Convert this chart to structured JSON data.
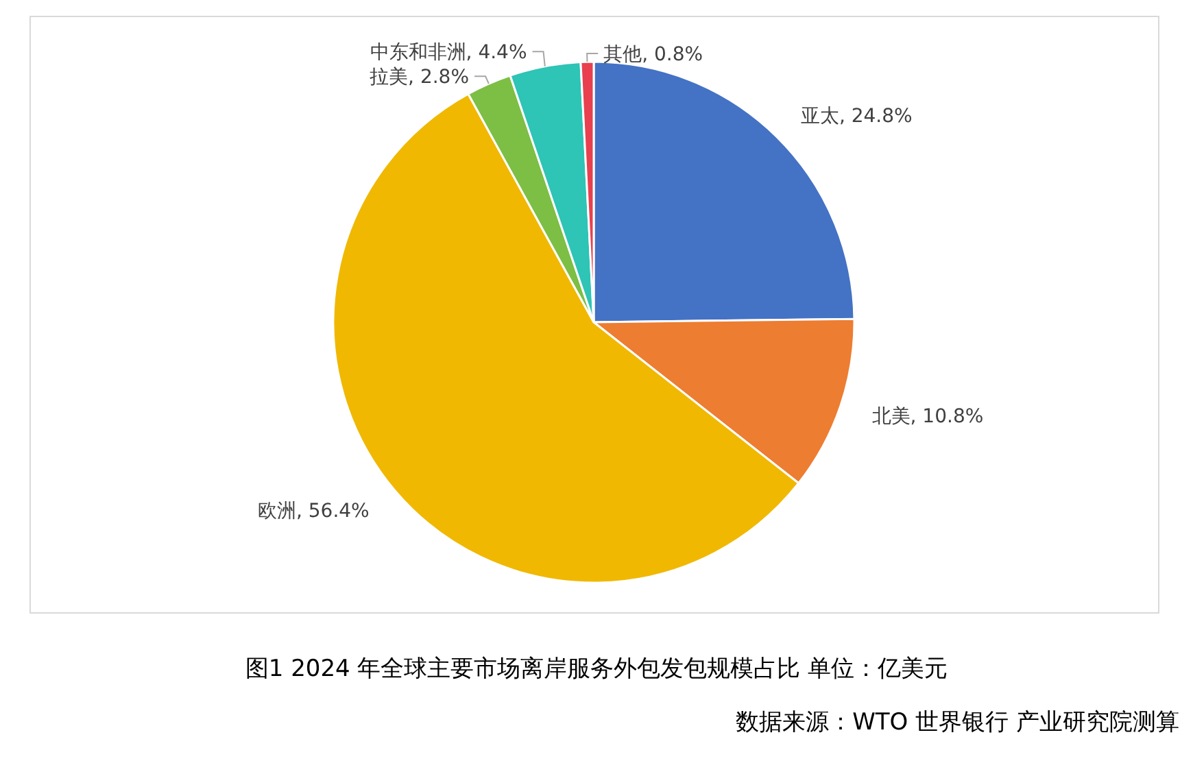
{
  "chart_data": {
    "type": "pie",
    "title": "图1 2024 年全球主要市场离岸服务外包发包规模占比 单位：亿美元",
    "categories": [
      "亚太",
      "北美",
      "欧洲",
      "拉美",
      "中东和非洲",
      "其他"
    ],
    "values": [
      24.8,
      10.8,
      56.4,
      2.8,
      4.4,
      0.8
    ],
    "value_labels": [
      "24.8%",
      "10.8%",
      "56.4%",
      "2.8%",
      "4.4%",
      "0.8%"
    ],
    "colors": [
      "#4472c4",
      "#ed7d31",
      "#f0b800",
      "#7cbf44",
      "#2ec4b6",
      "#e8404f"
    ],
    "legend": false,
    "annotations": [
      "数据来源：WTO 世界银行 产业研究院测算"
    ]
  }
}
